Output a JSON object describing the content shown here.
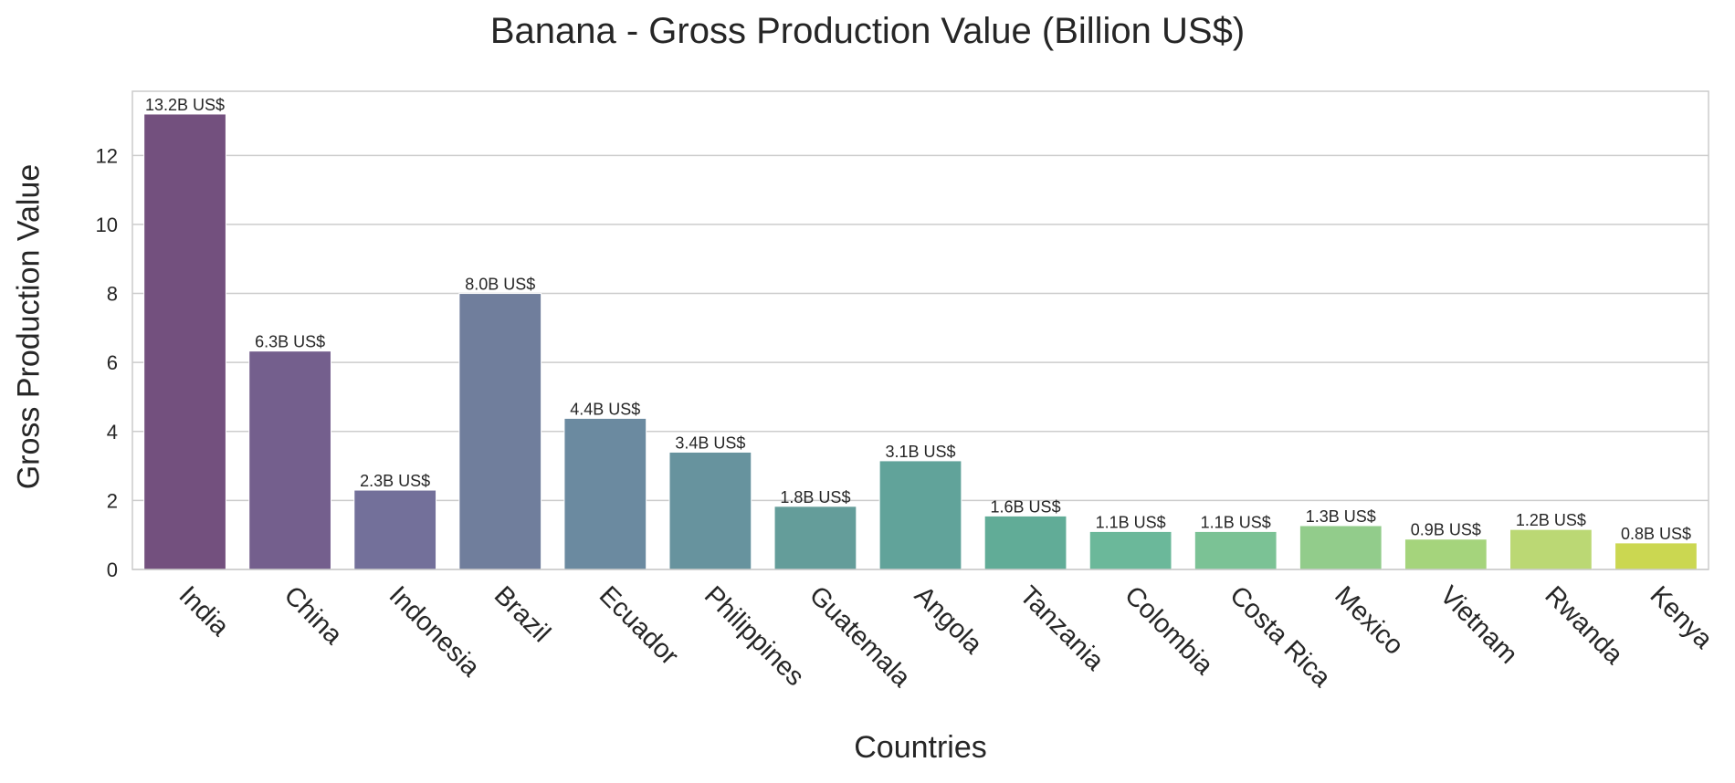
{
  "chart_data": {
    "type": "bar",
    "title": "Banana - Gross Production Value (Billion US$)",
    "xlabel": "Countries",
    "ylabel": "Gross Production Value",
    "categories": [
      "India",
      "China",
      "Indonesia",
      "Brazil",
      "Ecuador",
      "Philippines",
      "Guatemala",
      "Angola",
      "Tanzania",
      "Colombia",
      "Costa Rica",
      "Mexico",
      "Vietnam",
      "Rwanda",
      "Kenya"
    ],
    "values": [
      13.2,
      6.33,
      2.3,
      8.0,
      4.38,
      3.4,
      1.83,
      3.15,
      1.55,
      1.1,
      1.1,
      1.27,
      0.88,
      1.16,
      0.77
    ],
    "data_labels": [
      "13.2B US$",
      "6.3B US$",
      "2.3B US$",
      "8.0B US$",
      "4.4B US$",
      "3.4B US$",
      "1.8B US$",
      "3.1B US$",
      "1.6B US$",
      "1.1B US$",
      "1.1B US$",
      "1.3B US$",
      "0.9B US$",
      "1.2B US$",
      "0.8B US$"
    ],
    "colors": [
      "#73507e",
      "#745f8d",
      "#73709a",
      "#707e9c",
      "#6b8aa0",
      "#67939e",
      "#649d9a",
      "#61a39a",
      "#61ac97",
      "#6bb89a",
      "#7bc295",
      "#92cc8b",
      "#a5d47c",
      "#bbd874",
      "#cbd751"
    ],
    "yticks": [
      0,
      2,
      4,
      6,
      8,
      10,
      12
    ],
    "ylim": [
      0,
      13.86
    ],
    "grid": true,
    "legend": "none"
  }
}
